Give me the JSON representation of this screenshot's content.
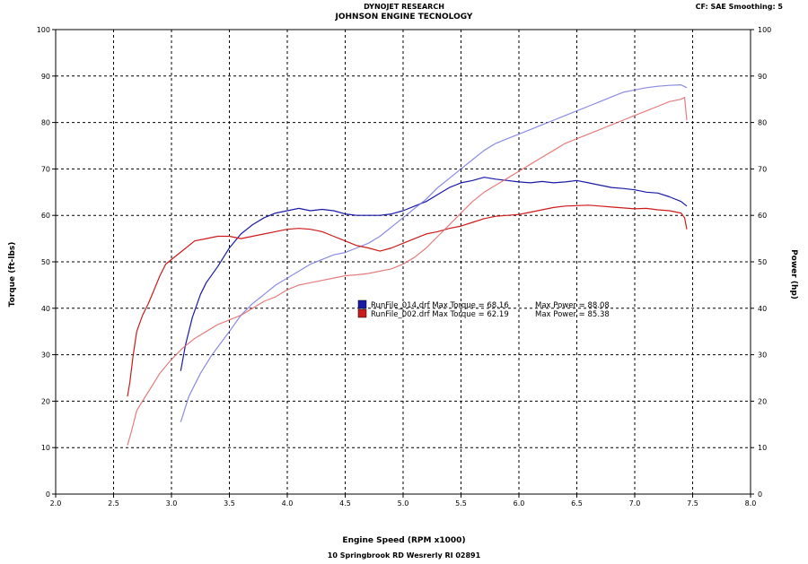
{
  "header": {
    "line1": "DYNOJET RESEARCH",
    "line2": "JOHNSON ENGINE TECNOLOGY",
    "correction": "CF: SAE  Smoothing: 5"
  },
  "footer": {
    "address": "10 Springbrook RD Wesrerly RI 02891"
  },
  "chart_data": {
    "type": "line",
    "xlabel": "Engine Speed (RPM x1000)",
    "ylabel": "Torque (ft-lbs)",
    "y2label": "Power (hp)",
    "xlim": [
      2.0,
      8.0
    ],
    "ylim": [
      0,
      100
    ],
    "y2lim": [
      0,
      100
    ],
    "x_ticks": [
      "2.0",
      "2.5",
      "3.0",
      "3.5",
      "4.0",
      "4.5",
      "5.0",
      "5.5",
      "6.0",
      "6.5",
      "7.0",
      "7.5",
      "8.0"
    ],
    "y_ticks": [
      "0",
      "10",
      "20",
      "30",
      "40",
      "50",
      "60",
      "70",
      "80",
      "90",
      "100"
    ],
    "grid": true,
    "legend_position": "center",
    "legend": [
      {
        "label": "RunFile_014.drf Max Torque = 68.16",
        "power": "Max Power = 88.08",
        "color": "#1a1aa6"
      },
      {
        "label": "RunFile_002.drf Max Torque = 62.19",
        "power": "Max Power = 85.38",
        "color": "#cc1a1a"
      }
    ],
    "series": [
      {
        "run": "RunFile_014.drf",
        "measure": "torque",
        "color": "#1a1aa6",
        "opacity": 1,
        "x": [
          3.08,
          3.12,
          3.18,
          3.25,
          3.3,
          3.4,
          3.5,
          3.6,
          3.7,
          3.8,
          3.9,
          4.0,
          4.1,
          4.2,
          4.3,
          4.4,
          4.5,
          4.6,
          4.7,
          4.8,
          4.9,
          5.0,
          5.1,
          5.2,
          5.3,
          5.4,
          5.5,
          5.6,
          5.7,
          5.8,
          5.9,
          6.0,
          6.1,
          6.2,
          6.3,
          6.4,
          6.5,
          6.6,
          6.7,
          6.8,
          6.9,
          7.0,
          7.1,
          7.2,
          7.3,
          7.4,
          7.45
        ],
        "y": [
          26.5,
          32,
          38,
          43,
          45.5,
          49,
          53,
          56,
          58,
          59.5,
          60.5,
          61,
          61.5,
          61,
          61.3,
          61,
          60.3,
          60,
          60,
          60,
          60.3,
          61,
          62,
          63,
          64.5,
          66,
          67,
          67.5,
          68.2,
          67.8,
          67.5,
          67.2,
          67,
          67.3,
          67,
          67.2,
          67.5,
          67,
          66.5,
          66,
          65.8,
          65.5,
          65,
          64.8,
          64,
          63,
          62
        ]
      },
      {
        "run": "RunFile_014.drf",
        "measure": "power",
        "color": "#7777dd",
        "opacity": 0.85,
        "x": [
          3.08,
          3.15,
          3.25,
          3.35,
          3.5,
          3.6,
          3.7,
          3.8,
          3.9,
          4.0,
          4.1,
          4.2,
          4.3,
          4.4,
          4.5,
          4.6,
          4.7,
          4.8,
          4.9,
          5.0,
          5.1,
          5.2,
          5.3,
          5.4,
          5.5,
          5.6,
          5.7,
          5.8,
          5.9,
          6.0,
          6.1,
          6.2,
          6.3,
          6.4,
          6.5,
          6.6,
          6.7,
          6.8,
          6.9,
          7.0,
          7.1,
          7.2,
          7.3,
          7.4,
          7.45
        ],
        "y": [
          15.5,
          21,
          26,
          30,
          35,
          38.5,
          41,
          43,
          45,
          46.5,
          48,
          49.5,
          50.5,
          51.5,
          52,
          53,
          54,
          55.5,
          57.5,
          59.5,
          61.5,
          63.5,
          66,
          68,
          70,
          72,
          74,
          75.5,
          76.5,
          77.5,
          78.5,
          79.5,
          80.5,
          81.5,
          82.5,
          83.5,
          84.5,
          85.5,
          86.5,
          87,
          87.5,
          87.8,
          88,
          88.1,
          87.5
        ]
      },
      {
        "run": "RunFile_002.drf",
        "measure": "torque",
        "color": "#cc1a1a",
        "opacity": 1,
        "x": [
          2.62,
          2.64,
          2.67,
          2.7,
          2.75,
          2.8,
          2.85,
          2.9,
          2.95,
          3.0,
          3.1,
          3.2,
          3.3,
          3.4,
          3.5,
          3.6,
          3.7,
          3.8,
          3.9,
          4.0,
          4.1,
          4.2,
          4.3,
          4.4,
          4.5,
          4.6,
          4.7,
          4.8,
          4.9,
          5.0,
          5.1,
          5.2,
          5.3,
          5.4,
          5.5,
          5.6,
          5.7,
          5.8,
          5.9,
          6.0,
          6.1,
          6.2,
          6.3,
          6.4,
          6.5,
          6.6,
          6.7,
          6.8,
          6.9,
          7.0,
          7.1,
          7.2,
          7.3,
          7.4,
          7.43,
          7.45
        ],
        "y": [
          21,
          24,
          30,
          35,
          38.5,
          41,
          44,
          47,
          49.5,
          50.5,
          52.5,
          54.5,
          55,
          55.5,
          55.5,
          55,
          55.5,
          56,
          56.5,
          57,
          57.2,
          57,
          56.5,
          55.5,
          54.5,
          53.5,
          53,
          52.3,
          53,
          54,
          55,
          56,
          56.5,
          57.2,
          57.7,
          58.5,
          59.3,
          59.8,
          60,
          60.2,
          60.7,
          61.2,
          61.7,
          62,
          62.1,
          62.2,
          62,
          61.8,
          61.6,
          61.4,
          61.5,
          61.2,
          61,
          60.5,
          59.5,
          57
        ]
      },
      {
        "run": "RunFile_002.drf",
        "measure": "power",
        "color": "#e06666",
        "opacity": 0.85,
        "x": [
          2.62,
          2.66,
          2.7,
          2.8,
          2.9,
          3.0,
          3.1,
          3.2,
          3.3,
          3.4,
          3.5,
          3.6,
          3.7,
          3.8,
          3.9,
          4.0,
          4.1,
          4.2,
          4.3,
          4.4,
          4.5,
          4.6,
          4.7,
          4.8,
          4.9,
          5.0,
          5.1,
          5.2,
          5.3,
          5.4,
          5.5,
          5.6,
          5.7,
          5.8,
          5.9,
          6.0,
          6.1,
          6.2,
          6.3,
          6.4,
          6.5,
          6.6,
          6.7,
          6.8,
          6.9,
          7.0,
          7.1,
          7.2,
          7.3,
          7.4,
          7.43,
          7.45
        ],
        "y": [
          10.5,
          14,
          18,
          22,
          26,
          29,
          31.5,
          33.5,
          35,
          36.5,
          37.5,
          38.5,
          40,
          41.5,
          42.5,
          44,
          45,
          45.5,
          46,
          46.5,
          47,
          47.2,
          47.5,
          48,
          48.5,
          49.5,
          51,
          53,
          55.5,
          58,
          60.5,
          63,
          65,
          66.5,
          68,
          69.5,
          71,
          72.5,
          74,
          75.5,
          76.5,
          77.5,
          78.5,
          79.5,
          80.5,
          81.5,
          82.5,
          83.5,
          84.5,
          85,
          85.4,
          80.5
        ]
      }
    ]
  }
}
